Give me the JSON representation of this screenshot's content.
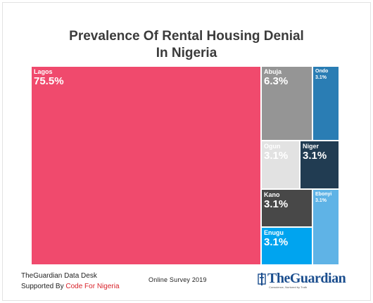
{
  "chart_data": {
    "type": "treemap",
    "title_lines": [
      "Prevalence Of Rental Housing Denial",
      "In Nigeria"
    ],
    "items": [
      {
        "label": "Lagos",
        "value": 75.5,
        "value_label": "75.5%",
        "color": "#f04a6d"
      },
      {
        "label": "Abuja",
        "value": 6.3,
        "value_label": "6.3%",
        "color": "#959595"
      },
      {
        "label": "Ondo",
        "value": 3.1,
        "value_label": "3.1%",
        "color": "#2a7db4"
      },
      {
        "label": "Ogun",
        "value": 3.1,
        "value_label": "3.1%",
        "color": "#e2e2e2"
      },
      {
        "label": "Niger",
        "value": 3.1,
        "value_label": "3.1%",
        "color": "#213c52"
      },
      {
        "label": "Kano",
        "value": 3.1,
        "value_label": "3.1%",
        "color": "#484848"
      },
      {
        "label": "Ebonyi",
        "value": 3.1,
        "value_label": "3.1%",
        "color": "#5fb3e6"
      },
      {
        "label": "Enugu",
        "value": 3.1,
        "value_label": "3.1%",
        "color": "#00a4ef"
      }
    ]
  },
  "footer": {
    "line1": "TheGuardian Data Desk",
    "line2_prefix": "Supported By ",
    "line2_brand": "Code For Nigeria",
    "source": "Online Survey 2019",
    "logo_text": "TheGuardian",
    "logo_tagline": "Conscience, Nurtured by Truth"
  },
  "colors": {
    "title": "#3b3b3b",
    "brand_red": "#d8222a",
    "logo_blue": "#1b4e8e"
  }
}
